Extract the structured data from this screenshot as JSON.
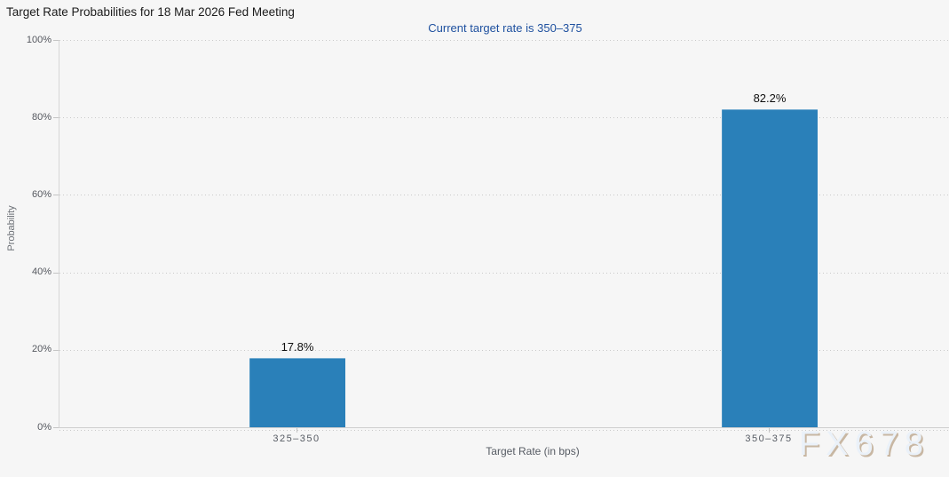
{
  "chart_data": {
    "type": "bar",
    "title": "Target Rate Probabilities for 18 Mar 2026 Fed Meeting",
    "subtitle": "Current target rate is 350–375",
    "categories": [
      "325–350",
      "350–375"
    ],
    "values": [
      17.8,
      82.2
    ],
    "value_labels": [
      "17.8%",
      "82.2%"
    ],
    "xlabel": "Target Rate (in bps)",
    "ylabel": "Probability",
    "ylim": [
      0,
      100
    ],
    "yticks": [
      0,
      20,
      40,
      60,
      80,
      100
    ],
    "ytick_labels": [
      "0%",
      "20%",
      "40%",
      "60%",
      "80%",
      "100%"
    ],
    "grid": "horizontal-dotted",
    "legend": "none",
    "bar_color": "#2a80b9",
    "subtitle_color": "#1e509f",
    "background_color": "#f6f6f6",
    "watermark": "FX678"
  }
}
